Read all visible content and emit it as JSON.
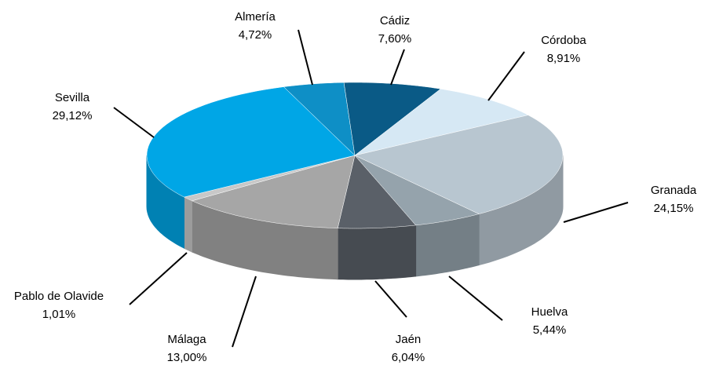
{
  "chart_data": {
    "type": "pie3d",
    "categories": [
      "Almería",
      "Cádiz",
      "Córdoba",
      "Granada",
      "Huelva",
      "Jaén",
      "Málaga",
      "Pablo de Olavide",
      "Sevilla"
    ],
    "values": [
      4.72,
      7.6,
      8.91,
      24.15,
      5.44,
      6.04,
      13.0,
      1.01,
      29.12
    ],
    "value_labels": [
      "4,72%",
      "7,60%",
      "8,91%",
      "24,15%",
      "5,44%",
      "6,04%",
      "13,00%",
      "1,01%",
      "29,12%"
    ],
    "colors": [
      "#0e8fc6",
      "#0a5a86",
      "#d6e8f4",
      "#b8c6d0",
      "#95a3ac",
      "#5a6068",
      "#a6a6a6",
      "#c8c8c8",
      "#00a6e6"
    ]
  }
}
